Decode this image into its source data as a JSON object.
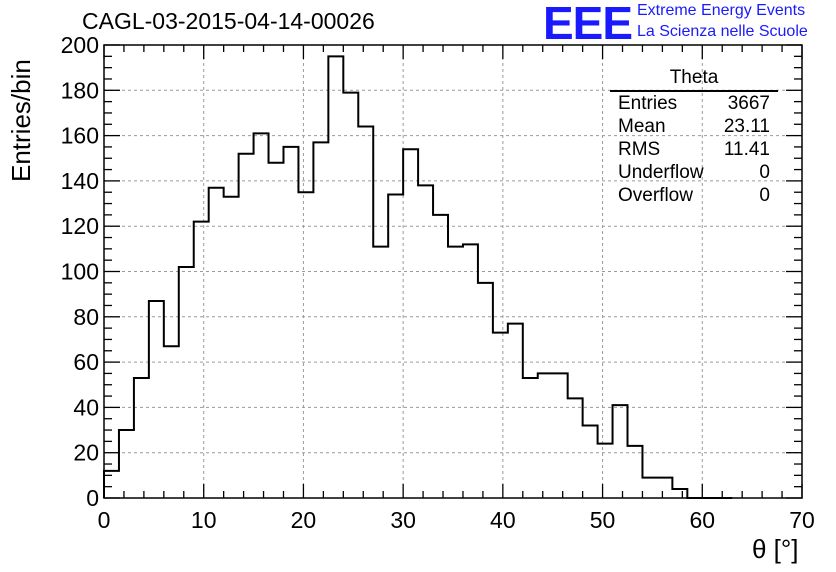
{
  "chart_data": {
    "type": "histogram",
    "title": "CAGL-03-2015-04-14-00026",
    "xlabel": "θ [°]",
    "ylabel": "Entries/bin",
    "xlim": [
      0,
      70
    ],
    "ylim": [
      0,
      200
    ],
    "grid": true,
    "bin_width": 1.5,
    "bin_edges_start": 0,
    "values": [
      12,
      30,
      53,
      87,
      67,
      102,
      122,
      137,
      133,
      152,
      161,
      148,
      155,
      135,
      157,
      195,
      179,
      164,
      111,
      134,
      154,
      138,
      125,
      111,
      112,
      95,
      73,
      77,
      53,
      55,
      55,
      44,
      32,
      24,
      41,
      23,
      9,
      9,
      4,
      0,
      0,
      0
    ],
    "x_ticks": [
      "0",
      "10",
      "20",
      "30",
      "40",
      "50",
      "60",
      "70"
    ],
    "y_ticks": [
      "0",
      "20",
      "40",
      "60",
      "80",
      "100",
      "120",
      "140",
      "160",
      "180",
      "200"
    ],
    "stats": {
      "name": "Theta",
      "rows": [
        {
          "label": "Entries",
          "value": "3667"
        },
        {
          "label": "Mean",
          "value": "23.11"
        },
        {
          "label": "RMS",
          "value": "11.41"
        },
        {
          "label": "Underflow",
          "value": "0"
        },
        {
          "label": "Overflow",
          "value": "0"
        }
      ]
    }
  },
  "logo": {
    "text": "EEE",
    "line1": "Extreme Energy Events",
    "line2": "La Scienza nelle Scuole",
    "color": "#1a1aff"
  }
}
